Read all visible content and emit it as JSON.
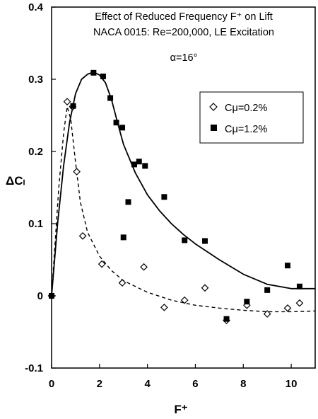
{
  "chart_data": {
    "type": "scatter",
    "title_lines": [
      "Effect of Reduced Frequency F⁺ on Lift",
      "NACA 0015: Re=200,000, LE Excitation",
      "α=16°"
    ],
    "xlabel": "F⁺",
    "ylabel": "ΔCₗ",
    "xlim": [
      0,
      11
    ],
    "ylim": [
      -0.1,
      0.4
    ],
    "x_ticks": [
      "0",
      "2",
      "4",
      "6",
      "8",
      "10"
    ],
    "y_ticks": [
      "-0.1",
      "0",
      "0.1",
      "0.2",
      "0.3",
      "0.4"
    ],
    "grid": false,
    "legend_position": "upper-right",
    "series": [
      {
        "name": "Cμ=0.2%",
        "marker": "open-diamond",
        "color": "#000000",
        "points": [
          [
            0,
            0
          ],
          [
            0.65,
            0.269
          ],
          [
            0.88,
            0.262
          ],
          [
            1.05,
            0.172
          ],
          [
            1.3,
            0.083
          ],
          [
            2.1,
            0.044
          ],
          [
            2.95,
            0.018
          ],
          [
            3.85,
            0.04
          ],
          [
            4.7,
            -0.016
          ],
          [
            5.55,
            -0.006
          ],
          [
            6.4,
            0.011
          ],
          [
            7.3,
            -0.034
          ],
          [
            8.15,
            -0.013
          ],
          [
            9.0,
            -0.025
          ],
          [
            9.85,
            -0.017
          ],
          [
            10.35,
            -0.01
          ]
        ],
        "fit_curve": {
          "style": "dashed",
          "points": [
            [
              0,
              0
            ],
            [
              0.3,
              0.15
            ],
            [
              0.5,
              0.225
            ],
            [
              0.65,
              0.262
            ],
            [
              0.8,
              0.245
            ],
            [
              1.0,
              0.185
            ],
            [
              1.2,
              0.13
            ],
            [
              1.5,
              0.088
            ],
            [
              2.0,
              0.055
            ],
            [
              2.5,
              0.035
            ],
            [
              3.0,
              0.021
            ],
            [
              4.0,
              0.005
            ],
            [
              5.0,
              -0.006
            ],
            [
              6.0,
              -0.013
            ],
            [
              7.0,
              -0.017
            ],
            [
              8.0,
              -0.02
            ],
            [
              9.0,
              -0.022
            ],
            [
              10.0,
              -0.022
            ],
            [
              11.0,
              -0.021
            ]
          ]
        }
      },
      {
        "name": "Cμ=1.2%",
        "marker": "filled-square",
        "color": "#000000",
        "points": [
          [
            0,
            0
          ],
          [
            0.9,
            0.263
          ],
          [
            1.75,
            0.309
          ],
          [
            2.15,
            0.304
          ],
          [
            2.45,
            0.274
          ],
          [
            2.7,
            0.24
          ],
          [
            2.95,
            0.233
          ],
          [
            3.0,
            0.081
          ],
          [
            3.2,
            0.13
          ],
          [
            3.45,
            0.182
          ],
          [
            3.65,
            0.186
          ],
          [
            3.9,
            0.18
          ],
          [
            4.7,
            0.137
          ],
          [
            5.55,
            0.077
          ],
          [
            6.4,
            0.076
          ],
          [
            7.3,
            -0.032
          ],
          [
            8.15,
            -0.008
          ],
          [
            9.0,
            0.008
          ],
          [
            9.85,
            0.042
          ],
          [
            10.35,
            0.013
          ]
        ],
        "fit_curve": {
          "style": "solid",
          "points": [
            [
              0,
              0
            ],
            [
              0.25,
              0.1
            ],
            [
              0.5,
              0.18
            ],
            [
              0.75,
              0.24
            ],
            [
              1.0,
              0.28
            ],
            [
              1.25,
              0.3
            ],
            [
              1.5,
              0.307
            ],
            [
              1.75,
              0.31
            ],
            [
              2.0,
              0.306
            ],
            [
              2.25,
              0.295
            ],
            [
              2.5,
              0.272
            ],
            [
              2.75,
              0.24
            ],
            [
              3.0,
              0.21
            ],
            [
              3.5,
              0.17
            ],
            [
              4.0,
              0.14
            ],
            [
              4.5,
              0.118
            ],
            [
              5.0,
              0.1
            ],
            [
              5.5,
              0.085
            ],
            [
              6.0,
              0.072
            ],
            [
              7.0,
              0.05
            ],
            [
              8.0,
              0.03
            ],
            [
              9.0,
              0.016
            ],
            [
              10.0,
              0.01
            ],
            [
              11.0,
              0.01
            ]
          ]
        }
      }
    ]
  }
}
